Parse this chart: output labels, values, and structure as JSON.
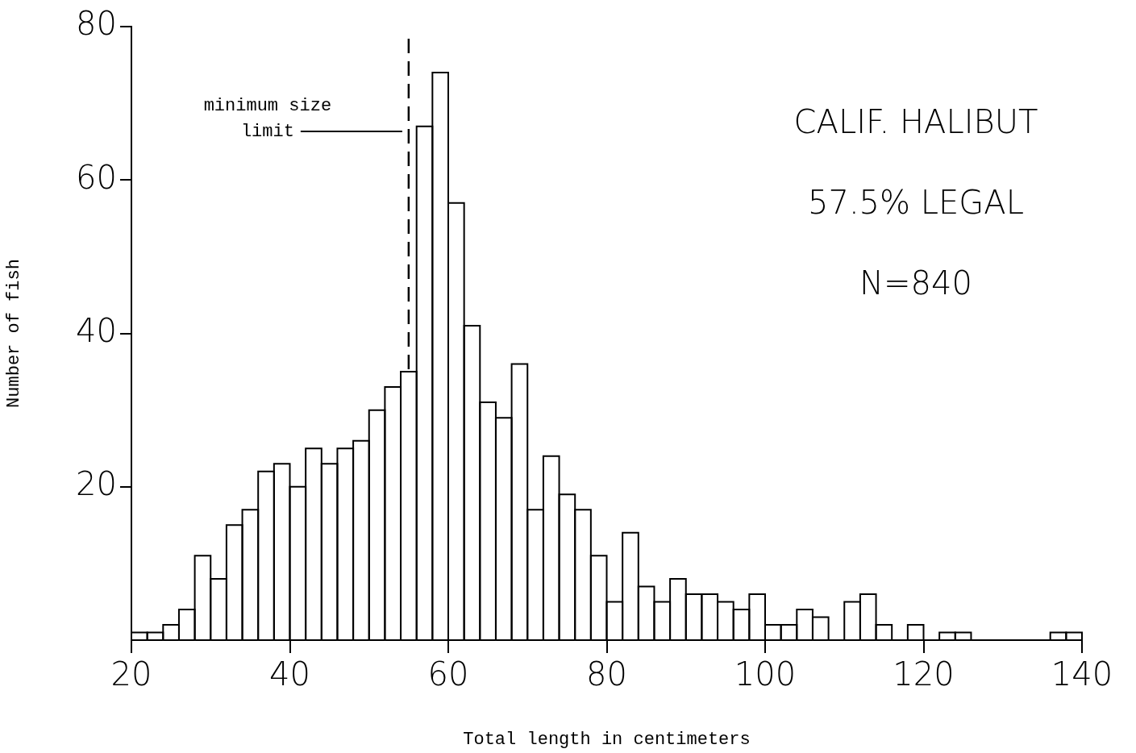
{
  "chart_data": {
    "type": "histogram",
    "xlabel": "Total length in centimeters",
    "ylabel": "Number of fish",
    "bins": [
      20,
      22,
      24,
      26,
      28,
      30,
      32,
      34,
      36,
      38,
      40,
      42,
      44,
      46,
      48,
      50,
      52,
      54,
      56,
      58,
      60,
      62,
      64,
      66,
      68,
      70,
      72,
      74,
      76,
      78,
      80,
      82,
      84,
      86,
      88,
      90,
      92,
      94,
      96,
      98,
      100,
      102,
      104,
      106,
      108,
      110,
      112,
      114,
      116,
      118,
      120,
      122,
      124,
      126,
      128,
      130,
      132,
      134,
      136,
      138,
      140
    ],
    "values": [
      1,
      1,
      2,
      4,
      11,
      8,
      15,
      17,
      22,
      23,
      20,
      25,
      23,
      25,
      26,
      30,
      33,
      35,
      67,
      74,
      57,
      41,
      31,
      29,
      36,
      17,
      24,
      19,
      17,
      11,
      5,
      14,
      7,
      5,
      8,
      6,
      6,
      5,
      4,
      6,
      2,
      2,
      4,
      3,
      0,
      5,
      6,
      2,
      0,
      2,
      0,
      1,
      1,
      0,
      0,
      0,
      0,
      0,
      1,
      1
    ],
    "color": "#000000",
    "xlim": [
      20,
      140
    ],
    "xticks": [
      20,
      40,
      60,
      80,
      100,
      120,
      140
    ],
    "ylim": [
      0,
      80
    ],
    "yticks": [
      20,
      40,
      60,
      80
    ],
    "ref_lines": [
      {
        "axis": "x",
        "value": 55,
        "label": "minimum size limit",
        "line_style": "dashed"
      }
    ],
    "annotations": [
      "CALIF. HALIBUT",
      "57.5% LEGAL",
      "N=840"
    ]
  }
}
